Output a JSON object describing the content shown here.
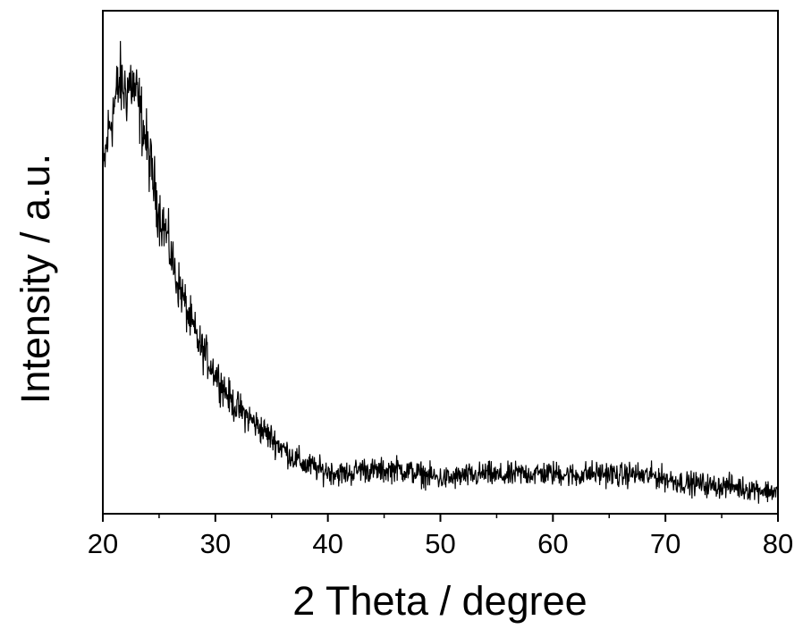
{
  "chart_data": {
    "type": "line",
    "title": "",
    "xlabel": "2 Theta / degree",
    "ylabel": "Intensity / a.u.",
    "xlim": [
      20,
      80
    ],
    "ylim": [
      0,
      100
    ],
    "x_ticks": [
      "20",
      "30",
      "40",
      "50",
      "60",
      "70",
      "80"
    ],
    "x_minor_ticks": [
      25,
      35,
      45,
      55,
      65,
      75
    ],
    "y_ticks": [],
    "grid": false,
    "legend": "none",
    "line_color": "#000000",
    "series": [
      {
        "x": [
          20,
          20.5,
          21,
          21.5,
          22,
          22.5,
          23,
          23.5,
          24,
          24.5,
          25,
          25.5,
          26,
          26.5,
          27,
          27.5,
          28,
          28.5,
          29,
          29.5,
          30,
          30.5,
          31,
          31.5,
          32,
          32.5,
          33,
          33.5,
          34,
          34.5,
          35,
          35.5,
          36,
          36.5,
          37,
          37.5,
          38,
          38.5,
          39,
          39.5,
          40,
          41,
          42,
          43,
          44,
          45,
          46,
          47,
          48,
          49,
          50,
          51,
          52,
          53,
          54,
          55,
          56,
          57,
          58,
          59,
          60,
          61,
          62,
          63,
          64,
          65,
          66,
          67,
          68,
          69,
          70,
          71,
          72,
          73,
          74,
          75,
          76,
          77,
          78,
          79,
          80
        ],
        "y": [
          67,
          76,
          81,
          86,
          84,
          86,
          83,
          78,
          72,
          66,
          60,
          57,
          52,
          47,
          44,
          40,
          37,
          34,
          32,
          30,
          28,
          26,
          24,
          22,
          21,
          20,
          19,
          18,
          17,
          16,
          15,
          14,
          13,
          12,
          11,
          10.5,
          9.5,
          9.5,
          9,
          8.5,
          8.5,
          8,
          8,
          9,
          8.5,
          8.5,
          9,
          8.5,
          8,
          7.5,
          7,
          7,
          7.5,
          7.5,
          8,
          7.5,
          7.5,
          8,
          8,
          8,
          8,
          8,
          7.5,
          8,
          8,
          8,
          7.5,
          8,
          7.5,
          7.5,
          7,
          6.5,
          6,
          6,
          5.5,
          5.5,
          5.5,
          5,
          5,
          4.5,
          4.5
        ]
      }
    ]
  }
}
